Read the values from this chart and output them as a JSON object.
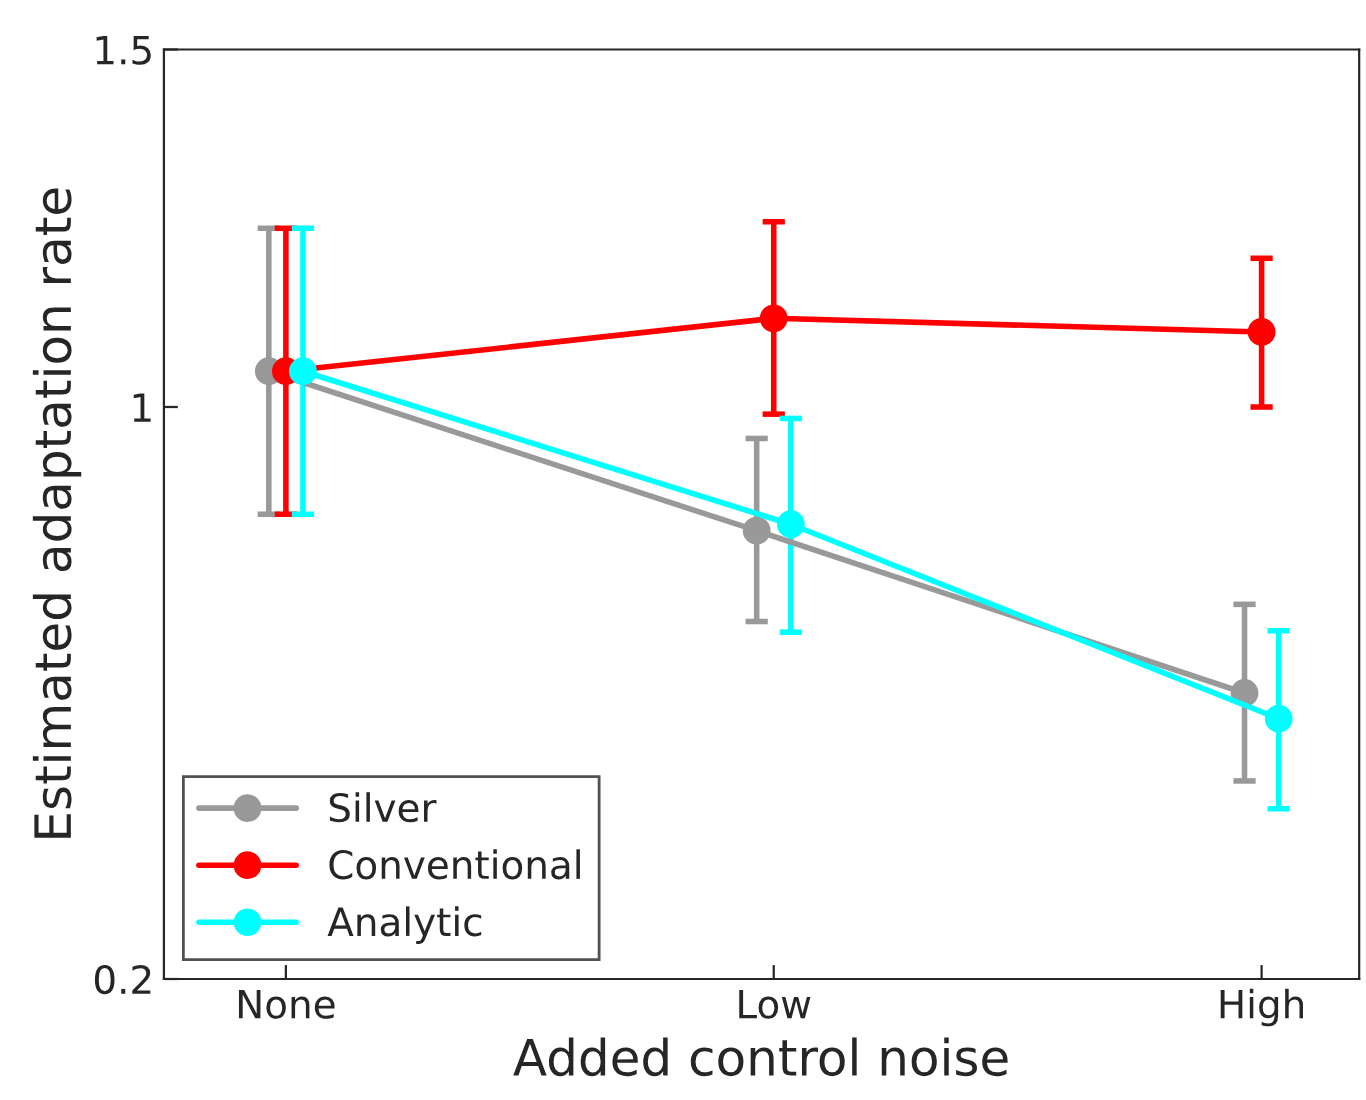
{
  "chart_data": {
    "type": "line",
    "xlabel": "Added control noise",
    "ylabel": "Estimated adaptation rate",
    "categories": [
      "None",
      "Low",
      "High"
    ],
    "series": [
      {
        "name": "Silver",
        "color": "#999999",
        "values": [
          1.05,
          0.827,
          0.6
        ],
        "errors": [
          [
            0.85,
            1.25
          ],
          [
            0.7,
            0.956
          ],
          [
            0.477,
            0.724
          ]
        ]
      },
      {
        "name": "Conventional",
        "color": "#ff0000",
        "values": [
          1.05,
          1.124,
          1.105
        ],
        "errors": [
          [
            0.85,
            1.25
          ],
          [
            0.99,
            1.259
          ],
          [
            1.0,
            1.208
          ]
        ]
      },
      {
        "name": "Analytic",
        "color": "#00ffff",
        "values": [
          1.05,
          0.836,
          0.564
        ],
        "errors": [
          [
            0.85,
            1.25
          ],
          [
            0.685,
            0.984
          ],
          [
            0.438,
            0.687
          ]
        ]
      }
    ],
    "ylim": [
      0.2,
      1.5
    ],
    "yticks": [
      0.2,
      1,
      1.5
    ],
    "grid": false,
    "legend": "bottom left",
    "marker": "circle",
    "line_style": "solid"
  }
}
